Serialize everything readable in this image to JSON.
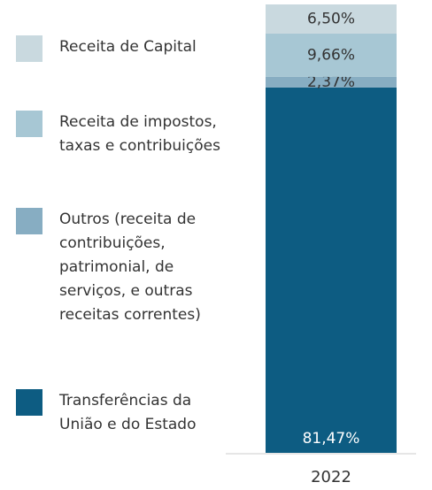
{
  "chart_data": {
    "type": "stacked-bar",
    "categories": [
      "2022"
    ],
    "series": [
      {
        "name": "Receita de Capital",
        "color": "#c9d9df",
        "values": [
          6.5
        ],
        "value_labels": [
          "6,50%"
        ]
      },
      {
        "name": "Receita de impostos, taxas e contribuições",
        "color": "#a7c7d4",
        "values": [
          9.66
        ],
        "value_labels": [
          "9,66%"
        ]
      },
      {
        "name": "Outros (receita de contribuições, patrimonial, de serviços, e outras receitas correntes)",
        "color": "#87adc2",
        "values": [
          2.37
        ],
        "value_labels": [
          "2,37%"
        ]
      },
      {
        "name": "Transferências da União e do Estado",
        "color": "#0d5c82",
        "values": [
          81.47
        ],
        "value_labels": [
          "81,47%"
        ]
      }
    ]
  }
}
